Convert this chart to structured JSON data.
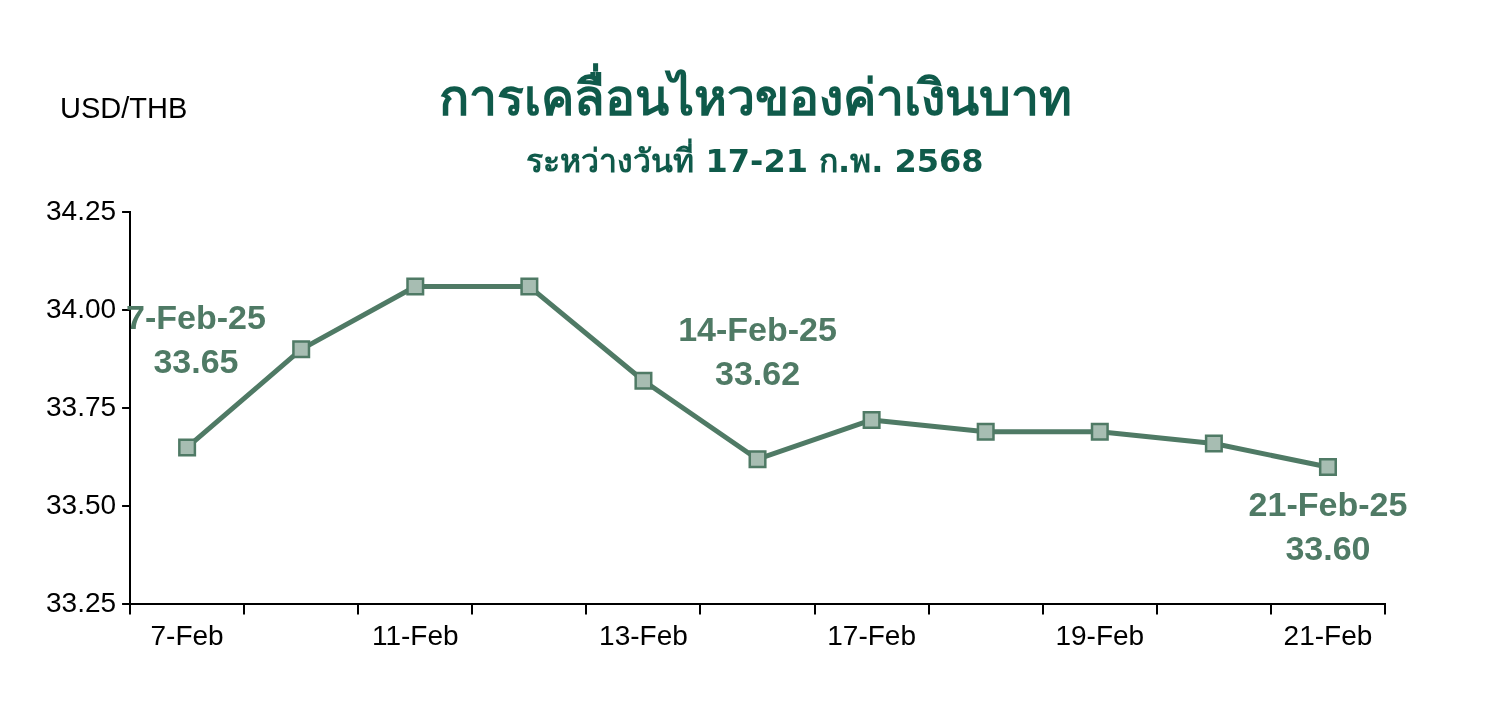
{
  "chart_data": {
    "type": "line",
    "title": "การเคลื่อนไหวของค่าเงินบาท",
    "subtitle": "ระหว่างวันที่ 17-21 ก.พ. 2568",
    "ylabel": "USD/THB",
    "categories": [
      "7-Feb",
      null,
      "11-Feb",
      null,
      "13-Feb",
      null,
      "17-Feb",
      null,
      "19-Feb",
      null,
      "21-Feb"
    ],
    "series": [
      {
        "color": "#4f7a65",
        "values": [
          33.65,
          33.9,
          34.06,
          34.06,
          33.82,
          33.62,
          33.72,
          33.69,
          33.69,
          33.66,
          33.6
        ],
        "value_labels": [
          "7-Feb-25\n33.65",
          null,
          null,
          null,
          null,
          "14-Feb-25\n33.62",
          null,
          null,
          null,
          null,
          "21-Feb-25\n33.60"
        ]
      }
    ],
    "ylim": [
      33.25,
      34.25
    ],
    "yticks": [
      {
        "value": 33.25,
        "label": "33.25"
      },
      {
        "value": 33.5,
        "label": "33.50"
      },
      {
        "value": 33.75,
        "label": "33.75"
      },
      {
        "value": 34,
        "label": "34.00"
      },
      {
        "value": 34.25,
        "label": "34.25"
      }
    ],
    "grid": false,
    "legend": false,
    "marker": "square",
    "line_style": "solid"
  }
}
